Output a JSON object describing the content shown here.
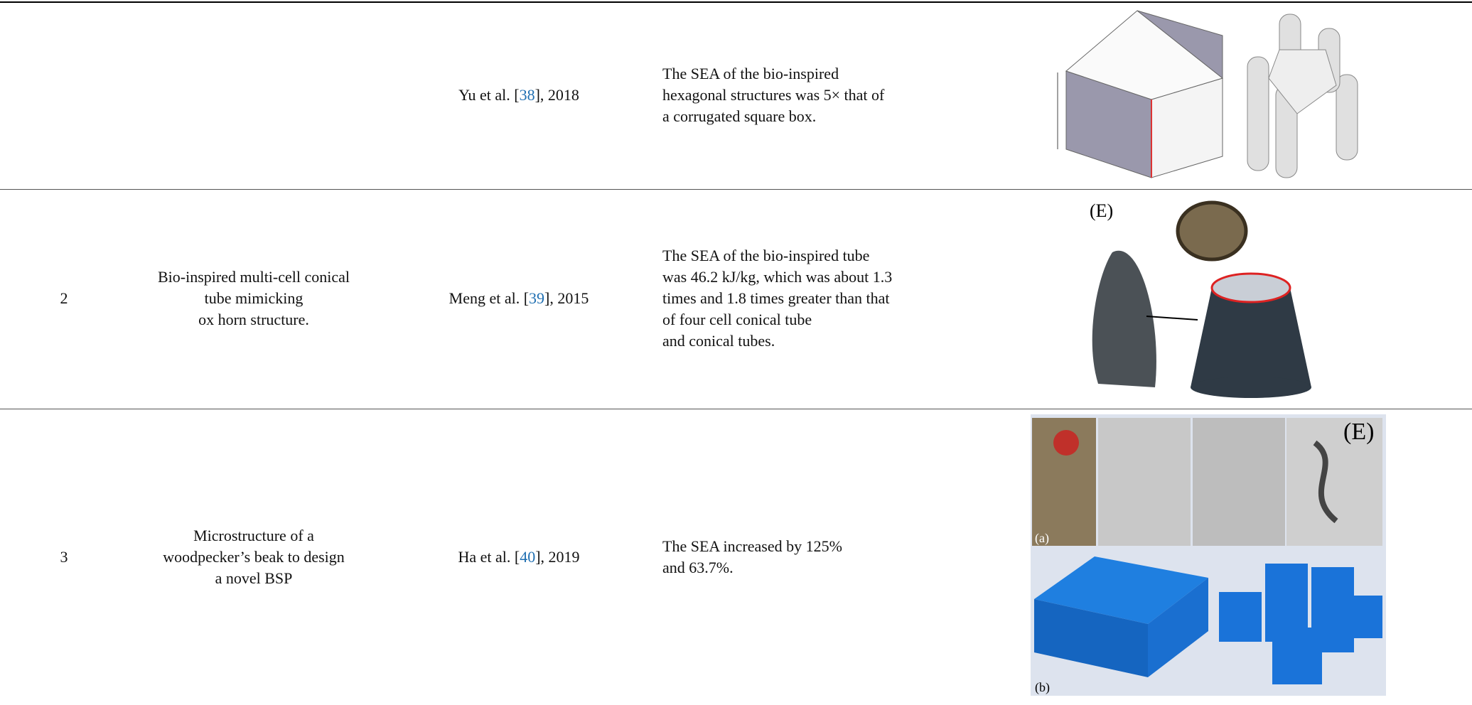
{
  "table": {
    "rows": [
      {
        "reference": {
          "author": "Yu et al. [",
          "ref": "38",
          "year": "], 2018"
        },
        "result": [
          "The SEA of the bio-inspired",
          "hexagonal structures was 5× that of",
          "a corrugated square box."
        ]
      },
      {
        "number": "2",
        "description": [
          "Bio-inspired multi-cell conical",
          "tube mimicking",
          "ox horn structure."
        ],
        "reference": {
          "author": "Meng et al. [",
          "ref": "39",
          "year": "], 2015"
        },
        "result": [
          "The SEA of the bio-inspired tube",
          "was 46.2 kJ/kg, which was about 1.3",
          "times and 1.8 times greater than that",
          "of four cell conical tube",
          "and conical tubes."
        ],
        "figure_labels": [
          "(E)"
        ]
      },
      {
        "number": "3",
        "description": [
          "Microstructure of a",
          "woodpecker’s beak to design",
          "a novel BSP"
        ],
        "reference": {
          "author": "Ha et al. [",
          "ref": "40",
          "year": "], 2019"
        },
        "result": [
          "The SEA increased by 125%",
          "and 63.7%."
        ],
        "figure_labels": [
          "(E)",
          "(a)",
          "(b)"
        ]
      }
    ]
  }
}
